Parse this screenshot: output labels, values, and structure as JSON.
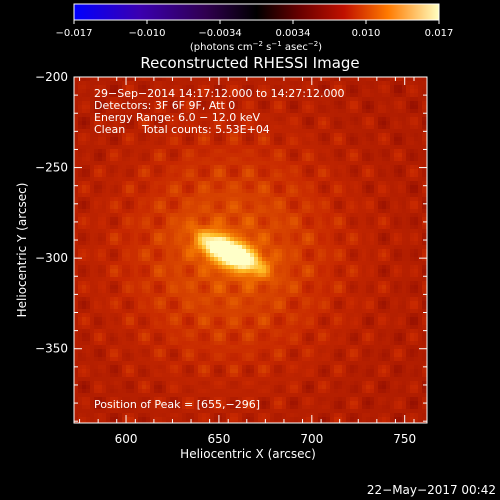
{
  "chart_data": {
    "type": "heatmap",
    "title": "Reconstructed RHESSI Image",
    "xlabel": "Heliocentric X (arcsec)",
    "ylabel": "Heliocentric Y (arcsec)",
    "xlim": [
      572,
      762
    ],
    "ylim": [
      -391,
      -200
    ],
    "xticks": [
      600,
      650,
      700,
      750
    ],
    "yticks": [
      -200,
      -250,
      -300,
      -350
    ],
    "colorbar": {
      "range": [
        -0.017,
        0.017
      ],
      "ticks": [
        "−0.017",
        "−0.010",
        "−0.0034",
        "0.0034",
        "0.010",
        "0.017"
      ],
      "unit_label": "(photons cm",
      "unit_exp1": "−2",
      "unit_mid": " s",
      "unit_exp2": "−1",
      "unit_mid2": " asec",
      "unit_exp3": "−2",
      "unit_end": ")"
    },
    "peak": {
      "x": 655,
      "y": -296,
      "value": 0.017
    },
    "annotations": {
      "line1": "29−Sep−2014 14:17:12.000 to 14:27:12.000",
      "line2": "Detectors: 3F 6F 9F, Att 0",
      "line3": "Energy Range: 6.0 − 12.0 keV",
      "line4a": "Clean",
      "line4b": "Total counts: 5.53E+04",
      "peak_label": "Position of Peak = [655,−296]"
    },
    "grid": false
  },
  "footer_date": "22−May−2017 00:42"
}
